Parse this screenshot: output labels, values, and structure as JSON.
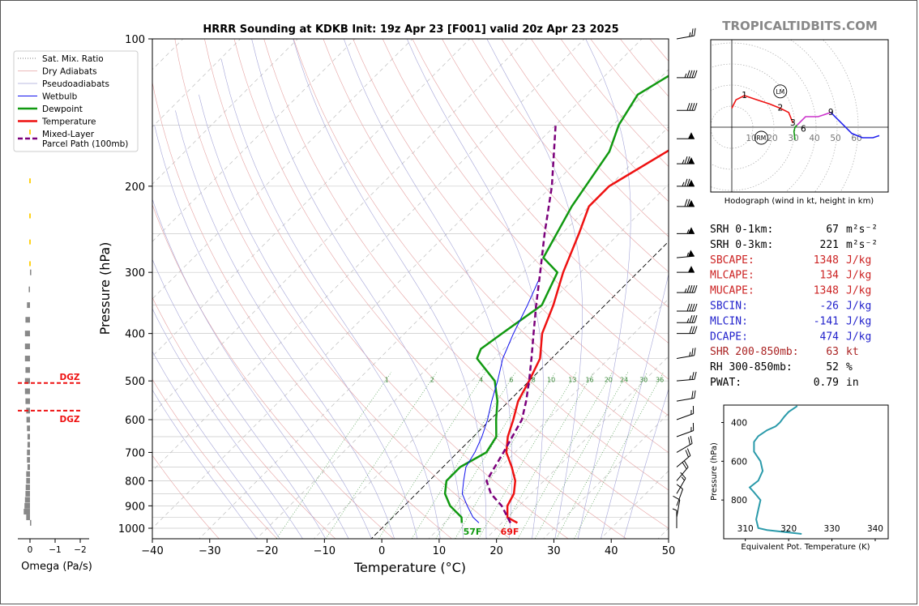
{
  "page": {
    "title": "HRRR Sounding at KDKB Init: 19z Apr 23 [F001] valid 20z Apr 23 2025",
    "brand": "TROPICALTIDBITS.COM"
  },
  "chart_data": [
    {
      "id": "skewt",
      "type": "line",
      "title": "HRRR Sounding at KDKB Init: 19z Apr 23 [F001] valid 20z Apr 23 2025",
      "xlabel": "Temperature (°C)",
      "ylabel": "Pressure (hPa)",
      "xlim": [
        -40,
        50
      ],
      "ylim": [
        1050,
        100
      ],
      "y_scale": "log",
      "x_ticks": [
        "−40",
        "−30",
        "−20",
        "−10",
        "0",
        "10",
        "20",
        "30",
        "40",
        "50"
      ],
      "y_ticks": [
        "100",
        "200",
        "300",
        "400",
        "500",
        "600",
        "700",
        "800",
        "900",
        "1000"
      ],
      "mixing_ratio_labels": [
        "1",
        "2",
        "4",
        "6",
        "8",
        "10",
        "13",
        "16",
        "20",
        "24",
        "30",
        "36"
      ],
      "legend": {
        "placement": "upper-left",
        "entries": [
          "Sat. Mix. Ratio",
          "Dry Adiabats",
          "Pseudoadiabats",
          "Wetbulb",
          "Dewpoint",
          "Temperature",
          "Mixed-Layer\nParcel Path (100mb)"
        ]
      },
      "surface_labels": {
        "dewpoint": "57F",
        "temperature": "69F"
      },
      "series": [
        {
          "name": "Temperature",
          "color": "#ee1111",
          "points": [
            [
              22.7,
              975
            ],
            [
              20,
              950
            ],
            [
              18,
              900
            ],
            [
              17,
              850
            ],
            [
              15,
              800
            ],
            [
              12,
              750
            ],
            [
              8.5,
              700
            ],
            [
              6,
              650
            ],
            [
              4,
              600
            ],
            [
              1.6,
              550
            ],
            [
              0,
              500
            ],
            [
              -2,
              450
            ],
            [
              -6,
              400
            ],
            [
              -9,
              350
            ],
            [
              -13,
              300
            ],
            [
              -17,
              250
            ],
            [
              -20,
              220
            ],
            [
              -20,
              200
            ],
            [
              -16,
              170
            ],
            [
              -13,
              150
            ],
            [
              -9,
              130
            ],
            [
              -4,
              110
            ],
            [
              0,
              100
            ]
          ]
        },
        {
          "name": "Dewpoint",
          "color": "#119911",
          "points": [
            [
              13,
              975
            ],
            [
              12,
              950
            ],
            [
              8,
              900
            ],
            [
              5,
              850
            ],
            [
              3,
              800
            ],
            [
              3,
              750
            ],
            [
              5,
              700
            ],
            [
              4,
              650
            ],
            [
              1,
              600
            ],
            [
              -2,
              550
            ],
            [
              -6,
              500
            ],
            [
              -13,
              450
            ],
            [
              -14,
              430
            ],
            [
              -13,
              400
            ],
            [
              -11,
              350
            ],
            [
              -14,
              300
            ],
            [
              -19,
              280
            ],
            [
              -23,
              220
            ],
            [
              -26,
              170
            ],
            [
              -29,
              150
            ],
            [
              -31,
              130
            ],
            [
              -27,
              110
            ],
            [
              -25,
              100
            ]
          ]
        },
        {
          "name": "Wetbulb",
          "color": "#1111ee",
          "points": [
            [
              16,
              975
            ],
            [
              14,
              950
            ],
            [
              11,
              900
            ],
            [
              8,
              850
            ],
            [
              6,
              800
            ],
            [
              4,
              750
            ],
            [
              3,
              700
            ],
            [
              1.5,
              650
            ],
            [
              -0.5,
              600
            ],
            [
              -3,
              550
            ],
            [
              -5.5,
              500
            ],
            [
              -8.5,
              450
            ],
            [
              -11,
              400
            ],
            [
              -13.5,
              350
            ],
            [
              -16,
              310
            ]
          ]
        },
        {
          "name": "Mixed-Layer\nParcel Path (100mb)",
          "color": "#7b007b",
          "points": [
            [
              21.5,
              975
            ],
            [
              17,
              900
            ],
            [
              13,
              850
            ],
            [
              10,
              800
            ],
            [
              8,
              700
            ],
            [
              5.5,
              600
            ],
            [
              3,
              550
            ],
            [
              0,
              500
            ],
            [
              -3.5,
              450
            ],
            [
              -7.5,
              400
            ],
            [
              -12,
              350
            ],
            [
              -17,
              300
            ],
            [
              -23,
              250
            ],
            [
              -30,
              200
            ],
            [
              -40,
              150
            ]
          ]
        }
      ]
    },
    {
      "id": "omega",
      "type": "bar",
      "xlabel": "Omega (Pa/s)",
      "x_ticks": [
        "0",
        "−1",
        "−2"
      ],
      "xlim": [
        0.5,
        -2.5
      ],
      "dgz_labels": [
        "DGZ",
        "DGZ"
      ],
      "dgz_pressures": [
        505,
        575
      ],
      "series": [
        {
          "name": "Omega",
          "color": "#888888",
          "pressures": [
            975,
            950,
            925,
            900,
            875,
            850,
            825,
            800,
            775,
            750,
            725,
            700,
            675,
            650,
            625,
            600,
            575,
            550,
            525,
            500,
            475,
            450,
            425,
            400,
            375,
            350,
            325,
            300
          ],
          "values": [
            -0.05,
            0.15,
            0.25,
            0.22,
            0.2,
            0.18,
            0.17,
            0.15,
            0.15,
            0.1,
            0.12,
            0.12,
            0.1,
            0.1,
            0.12,
            0.14,
            0.15,
            0.18,
            0.2,
            0.2,
            0.18,
            0.2,
            0.2,
            0.2,
            0.18,
            0.12,
            0.05,
            -0.05
          ]
        }
      ]
    },
    {
      "id": "hodograph",
      "type": "line",
      "caption": "Hodograph (wind in kt, height in km)",
      "ring_labels": [
        "10",
        "20",
        "30",
        "40",
        "50",
        "60"
      ],
      "rings_kt": [
        10,
        20,
        30,
        40,
        50,
        60
      ],
      "height_labels": [
        {
          "label": "1",
          "u": 6,
          "v": 15
        },
        {
          "label": "2",
          "u": 23,
          "v": 9
        },
        {
          "label": "3",
          "u": 29,
          "v": 2
        },
        {
          "label": "6",
          "u": 34,
          "v": -1
        },
        {
          "label": "9",
          "u": 47,
          "v": 7
        }
      ],
      "markers": [
        {
          "label": "LM",
          "u": 23,
          "v": 17
        },
        {
          "label": "RM",
          "u": 14,
          "v": -5
        }
      ],
      "segments": [
        {
          "color": "#119911",
          "points": [
            [
              30,
              -6
            ],
            [
              29.5,
              -2
            ],
            [
              30,
              0
            ],
            [
              31,
              1
            ]
          ]
        },
        {
          "color": "#ee1111",
          "points": [
            [
              0,
              9
            ],
            [
              2,
              13
            ],
            [
              6,
              15
            ],
            [
              12,
              13
            ],
            [
              18,
              11
            ],
            [
              23,
              9
            ],
            [
              27,
              7
            ],
            [
              29,
              2
            ]
          ]
        },
        {
          "color": "#cc33cc",
          "points": [
            [
              31,
              1
            ],
            [
              35,
              5
            ],
            [
              41,
              5
            ],
            [
              47,
              7
            ]
          ]
        },
        {
          "color": "#2222ee",
          "points": [
            [
              47,
              7
            ],
            [
              52,
              2
            ],
            [
              57,
              -3
            ],
            [
              62,
              -5
            ],
            [
              67,
              -5
            ],
            [
              70,
              -4
            ]
          ]
        }
      ]
    },
    {
      "id": "theta-e",
      "type": "line",
      "xlabel": "Equivalent Pot. Temperature (K)",
      "ylabel": "Pressure (hPa)",
      "x_ticks": [
        "310",
        "320",
        "330",
        "340"
      ],
      "y_ticks": [
        "400",
        "600",
        "800"
      ],
      "xlim": [
        305,
        343
      ],
      "ylim": [
        1000,
        310
      ],
      "series": [
        {
          "name": "Theta-E",
          "color": "#2a9aaa",
          "points": [
            [
              323,
              975
            ],
            [
              319,
              965
            ],
            [
              315,
              955
            ],
            [
              313,
              945
            ],
            [
              312.5,
              900
            ],
            [
              313,
              850
            ],
            [
              313.5,
              800
            ],
            [
              312,
              760
            ],
            [
              311,
              735
            ],
            [
              313,
              700
            ],
            [
              314,
              650
            ],
            [
              313.5,
              600
            ],
            [
              312,
              550
            ],
            [
              312,
              500
            ],
            [
              313,
              470
            ],
            [
              315,
              440
            ],
            [
              317,
              420
            ],
            [
              318,
              400
            ],
            [
              319,
              370
            ],
            [
              320,
              345
            ],
            [
              322,
              315
            ]
          ]
        }
      ]
    }
  ],
  "indices": [
    {
      "label": "SRH 0-1km:",
      "value": "67",
      "unit": "m²s⁻²",
      "color": "#000000"
    },
    {
      "label": "SRH 0-3km:",
      "value": "221",
      "unit": "m²s⁻²",
      "color": "#000000"
    },
    {
      "label": "SBCAPE:",
      "value": "1348",
      "unit": "J/kg",
      "color": "#cc2222"
    },
    {
      "label": "MLCAPE:",
      "value": "134",
      "unit": "J/kg",
      "color": "#cc2222"
    },
    {
      "label": "MUCAPE:",
      "value": "1348",
      "unit": "J/kg",
      "color": "#cc2222"
    },
    {
      "label": "SBCIN:",
      "value": "-26",
      "unit": "J/kg",
      "color": "#2222cc"
    },
    {
      "label": "MLCIN:",
      "value": "-141",
      "unit": "J/kg",
      "color": "#2222cc"
    },
    {
      "label": "DCAPE:",
      "value": "474",
      "unit": "J/kg",
      "color": "#2222cc"
    },
    {
      "label": "SHR 200-850mb:",
      "value": "63",
      "unit": "kt",
      "color": "#aa2222"
    },
    {
      "label": "RH 300-850mb:",
      "value": "52",
      "unit": "%",
      "color": "#000000"
    },
    {
      "label": "PWAT:",
      "value": "0.79",
      "unit": "in",
      "color": "#000000"
    }
  ],
  "wind_barbs": [
    {
      "p": 100,
      "dir": 260,
      "kt": 25
    },
    {
      "p": 120,
      "dir": 270,
      "kt": 45
    },
    {
      "p": 140,
      "dir": 270,
      "kt": 40
    },
    {
      "p": 160,
      "dir": 270,
      "kt": 50
    },
    {
      "p": 180,
      "dir": 270,
      "kt": 75
    },
    {
      "p": 200,
      "dir": 270,
      "kt": 75
    },
    {
      "p": 220,
      "dir": 270,
      "kt": 70
    },
    {
      "p": 250,
      "dir": 270,
      "kt": 55
    },
    {
      "p": 280,
      "dir": 265,
      "kt": 55
    },
    {
      "p": 300,
      "dir": 270,
      "kt": 50
    },
    {
      "p": 330,
      "dir": 270,
      "kt": 45
    },
    {
      "p": 360,
      "dir": 270,
      "kt": 40
    },
    {
      "p": 380,
      "dir": 270,
      "kt": 35
    },
    {
      "p": 400,
      "dir": 270,
      "kt": 30
    },
    {
      "p": 450,
      "dir": 260,
      "kt": 25
    },
    {
      "p": 500,
      "dir": 265,
      "kt": 25
    },
    {
      "p": 550,
      "dir": 260,
      "kt": 20
    },
    {
      "p": 600,
      "dir": 250,
      "kt": 15
    },
    {
      "p": 650,
      "dir": 250,
      "kt": 15
    },
    {
      "p": 700,
      "dir": 240,
      "kt": 20
    },
    {
      "p": 750,
      "dir": 230,
      "kt": 20
    },
    {
      "p": 800,
      "dir": 220,
      "kt": 20
    },
    {
      "p": 850,
      "dir": 210,
      "kt": 15
    },
    {
      "p": 900,
      "dir": 200,
      "kt": 10
    },
    {
      "p": 950,
      "dir": 190,
      "kt": 10
    },
    {
      "p": 1000,
      "dir": 180,
      "kt": 5
    }
  ]
}
